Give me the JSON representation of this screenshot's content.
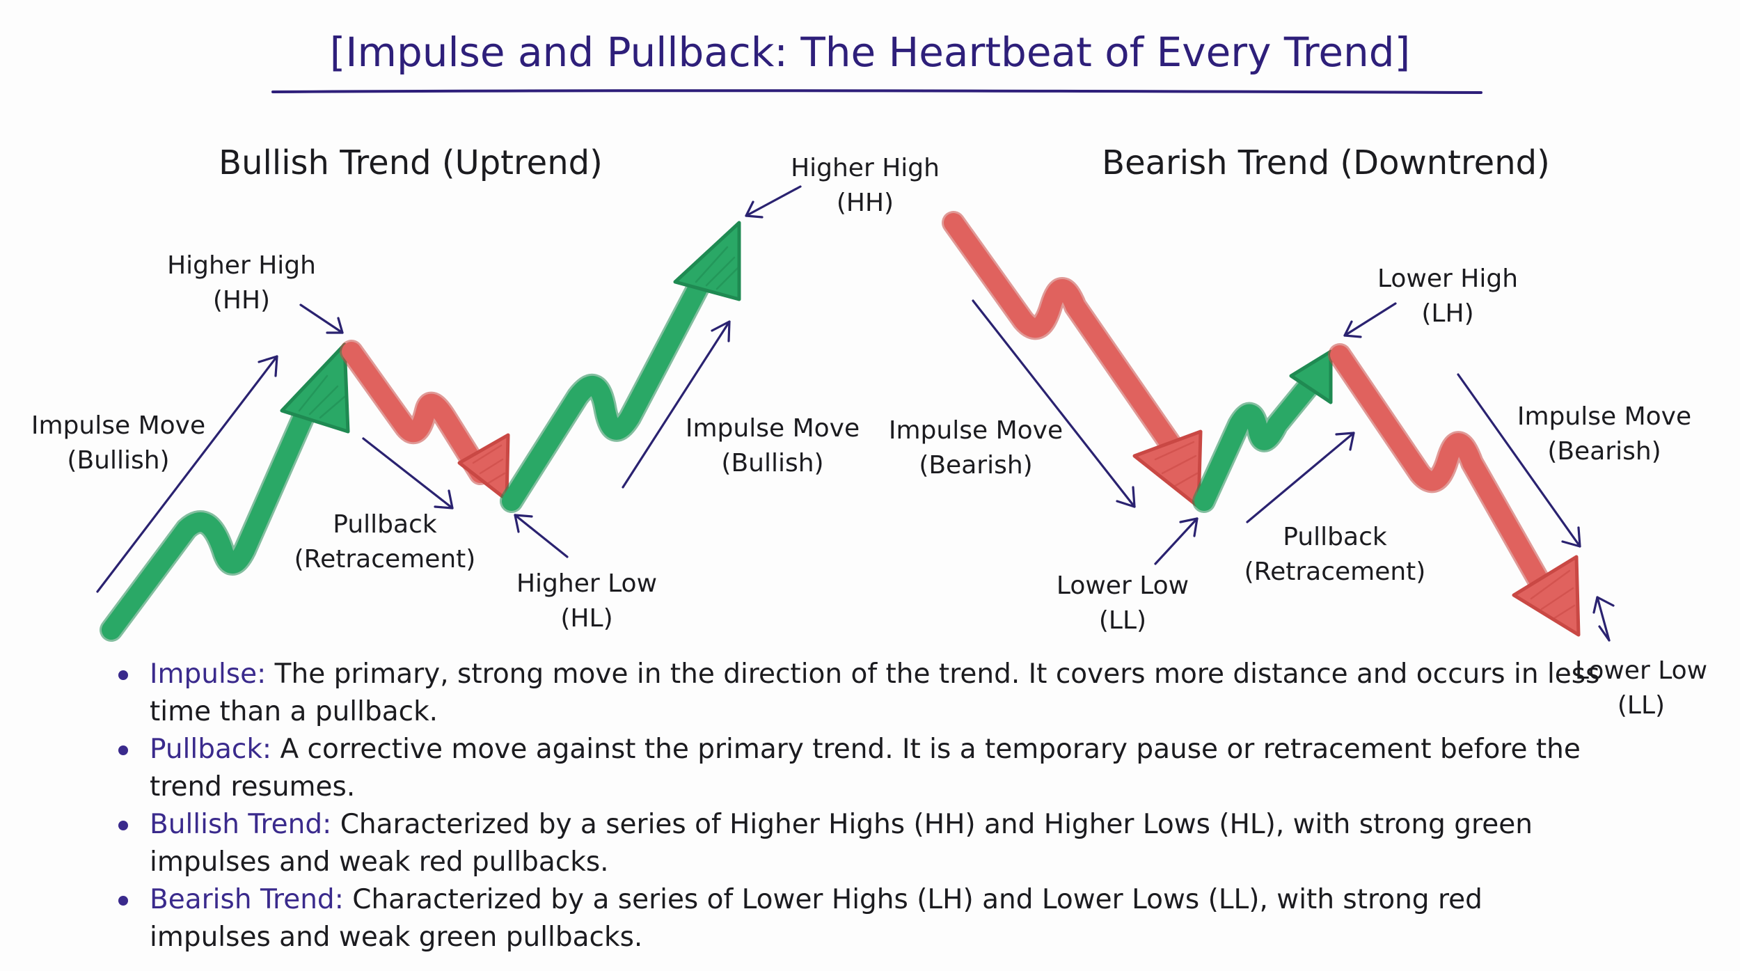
{
  "title": "[Impulse and Pullback: The Heartbeat of Every Trend]",
  "bullish": {
    "heading": "Bullish Trend (Uptrend)",
    "hh1": [
      "Higher High",
      "(HH)"
    ],
    "hh2": [
      "Higher High",
      "(HH)"
    ],
    "impulse1": [
      "Impulse Move",
      "(Bullish)"
    ],
    "impulse2": [
      "Impulse Move",
      "(Bullish)"
    ],
    "pullback": [
      "Pullback",
      "(Retracement)"
    ],
    "hl": [
      "Higher Low",
      "(HL)"
    ]
  },
  "bearish": {
    "heading": "Bearish Trend (Downtrend)",
    "impulse1": [
      "Impulse Move",
      "(Bearish)"
    ],
    "impulse2": [
      "Impulse Move",
      "(Bearish)"
    ],
    "lh": [
      "Lower High",
      "(LH)"
    ],
    "ll1": [
      "Lower Low",
      "(LL)"
    ],
    "ll2": [
      "Lower Low",
      "(LL)"
    ],
    "pullback": [
      "Pullback",
      "(Retracement)"
    ]
  },
  "bullets": [
    {
      "term": "Impulse:",
      "text": "The primary, strong move in the direction of the trend. It covers more distance and occurs in less time than a pullback."
    },
    {
      "term": "Pullback:",
      "text": "A corrective move against the primary trend. It is a temporary pause or retracement before the trend resumes."
    },
    {
      "term": "Bullish Trend:",
      "text": "Characterized by a series of Higher Highs (HH) and Higher Lows (HL), with strong green impulses and weak red pullbacks."
    },
    {
      "term": "Bearish Trend:",
      "text": "Characterized by a series of Lower Highs (LH) and Lower Lows (LL), with strong red impulses and weak green pullbacks."
    }
  ],
  "colors": {
    "green": "#2aa866",
    "red": "#e0625e",
    "ink": "#2e1f7a"
  }
}
